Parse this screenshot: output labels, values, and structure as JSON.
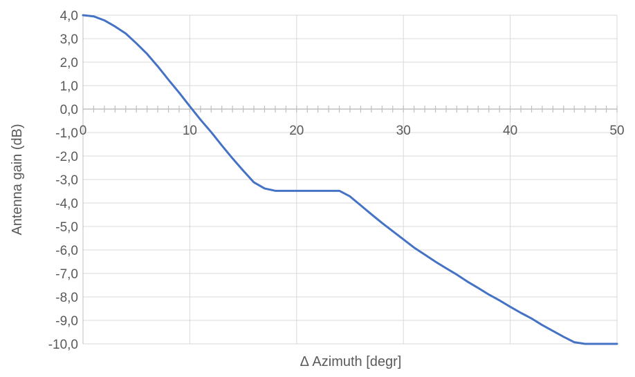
{
  "chart_data": {
    "type": "line",
    "title": "",
    "xlabel": "Δ Azimuth [degr]",
    "ylabel": "Antenna gain (dB)",
    "xlim": [
      0,
      50
    ],
    "ylim": [
      -10,
      4
    ],
    "x_ticks": [
      "0",
      "10",
      "20",
      "30",
      "40",
      "50"
    ],
    "y_ticks": [
      "4,0",
      "3,0",
      "2,0",
      "1,0",
      "0,0",
      "-1,0",
      "-2,0",
      "-3,0",
      "-4,0",
      "-5,0",
      "-6,0",
      "-7,0",
      "-8,0",
      "-9,0",
      "-10,0"
    ],
    "grid": true,
    "series": [
      {
        "color": "#4472C4",
        "x": [
          0,
          1,
          2,
          3,
          4,
          5,
          6,
          7,
          8,
          9,
          10,
          11,
          12,
          13,
          14,
          15,
          16,
          17,
          18,
          19,
          20,
          21,
          22,
          23,
          24,
          25,
          26,
          27,
          28,
          29,
          30,
          31,
          32,
          33,
          34,
          35,
          36,
          37,
          38,
          39,
          40,
          41,
          42,
          43,
          44,
          45,
          46,
          47,
          48,
          49,
          50
        ],
        "y": [
          4.0,
          3.95,
          3.78,
          3.52,
          3.22,
          2.8,
          2.35,
          1.82,
          1.25,
          0.7,
          0.12,
          -0.45,
          -0.98,
          -1.55,
          -2.1,
          -2.62,
          -3.12,
          -3.38,
          -3.48,
          -3.48,
          -3.48,
          -3.48,
          -3.48,
          -3.48,
          -3.48,
          -3.72,
          -4.1,
          -4.48,
          -4.85,
          -5.2,
          -5.55,
          -5.9,
          -6.2,
          -6.5,
          -6.78,
          -7.05,
          -7.35,
          -7.62,
          -7.9,
          -8.15,
          -8.42,
          -8.68,
          -8.92,
          -9.2,
          -9.45,
          -9.7,
          -9.93,
          -10.0,
          -10.0,
          -10.0,
          -10.0
        ]
      }
    ]
  }
}
